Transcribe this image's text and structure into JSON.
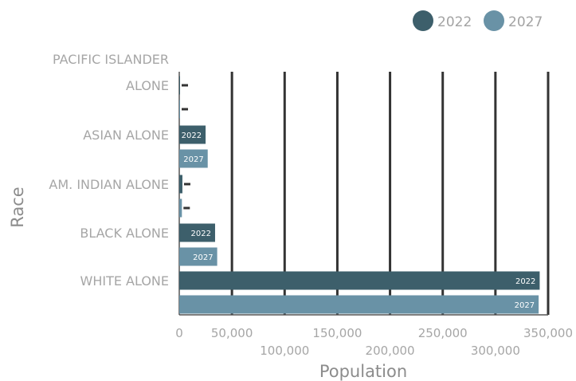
{
  "chart_data": {
    "type": "bar",
    "orientation": "horizontal",
    "title": "",
    "xlabel": "Population",
    "ylabel": "Race",
    "xlim": [
      0,
      350000
    ],
    "xticks": [
      {
        "value": 0,
        "label": "0"
      },
      {
        "value": 50000,
        "label": "50,000"
      },
      {
        "value": 100000,
        "label": "100,000"
      },
      {
        "value": 150000,
        "label": "150,000"
      },
      {
        "value": 200000,
        "label": "200,000"
      },
      {
        "value": 250000,
        "label": "250,000"
      },
      {
        "value": 300000,
        "label": "300,000"
      },
      {
        "value": 350000,
        "label": "350,000"
      }
    ],
    "categories": [
      "WHITE ALONE",
      "BLACK ALONE",
      "AM. INDIAN ALONE",
      "ASIAN ALONE",
      "PACIFIC ISLANDER ALONE"
    ],
    "category_lines": [
      [
        "WHITE ALONE"
      ],
      [
        "BLACK ALONE"
      ],
      [
        "AM. INDIAN ALONE"
      ],
      [
        "ASIAN ALONE"
      ],
      [
        "PACIFIC ISLANDER",
        "ALONE"
      ]
    ],
    "series": [
      {
        "name": "2022",
        "color": "#3d5f6b",
        "values": [
          342000,
          34000,
          3000,
          25000,
          500
        ]
      },
      {
        "name": "2027",
        "color": "#6992a6",
        "values": [
          341000,
          36000,
          2500,
          27000,
          400
        ]
      }
    ],
    "legend_position": "top-right",
    "grid": true,
    "bar_labels": "series-name"
  }
}
